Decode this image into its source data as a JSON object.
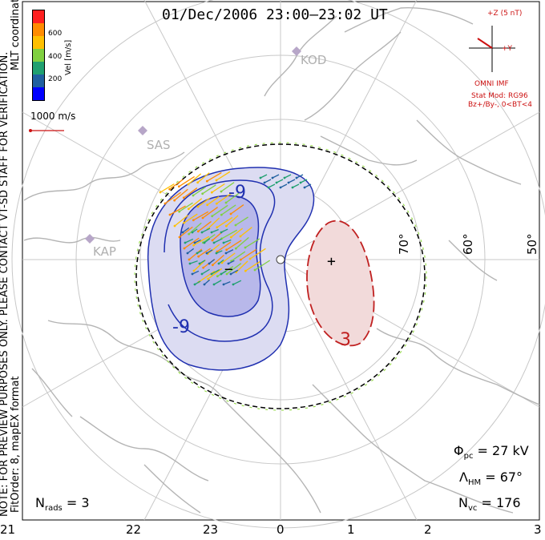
{
  "title": "01/Dec/2006 23:00–23:02 UT",
  "colorbar": {
    "label": "Vel [m/s]",
    "ticks": [
      "600",
      "400",
      "200"
    ],
    "colors": [
      "#ff2020",
      "#ff8c00",
      "#ffc000",
      "#80d040",
      "#20a070",
      "#2060a0",
      "#0000ff"
    ]
  },
  "coord_label": "MLT coordinates",
  "scale_label": "1000 m/s",
  "notice": "NOTE: FOR PREVIEW PURPOSES ONLY. PLEASE CONTACT VT-SD STAFF FOR VERIFICATION.",
  "fit_info": "FitOrder: 8, mapEX format",
  "stations": [
    "KOD",
    "SAS",
    "KAP"
  ],
  "imf": {
    "z_label": "+Z (5 nT)",
    "y_label": "+Y",
    "source": "OMNI IMF",
    "model": "Stat Mod: RG96",
    "condition": "Bz+/By-, 0<BT<4"
  },
  "latitudes": [
    "70°",
    "60°",
    "50°"
  ],
  "contours": {
    "minus_symbol": "−",
    "plus_symbol": "+",
    "minus_label_top": "-9",
    "minus_label_bottom": "-9",
    "plus_label": "3"
  },
  "stats": {
    "phi_pc_symbol": "Φ",
    "phi_pc_sub": "pc",
    "phi_pc_value": "= 27 kV",
    "lambda_hm_symbol": "Λ",
    "lambda_hm_sub": "HM",
    "lambda_hm_value": "= 67°",
    "n_vc_symbol": "N",
    "n_vc_sub": "vc",
    "n_vc_value": "= 176",
    "n_rads_symbol": "N",
    "n_rads_sub": "rads",
    "n_rads_value": "= 3"
  },
  "mlt_ticks": [
    "21",
    "22",
    "23",
    "0",
    "1",
    "2",
    "3"
  ]
}
